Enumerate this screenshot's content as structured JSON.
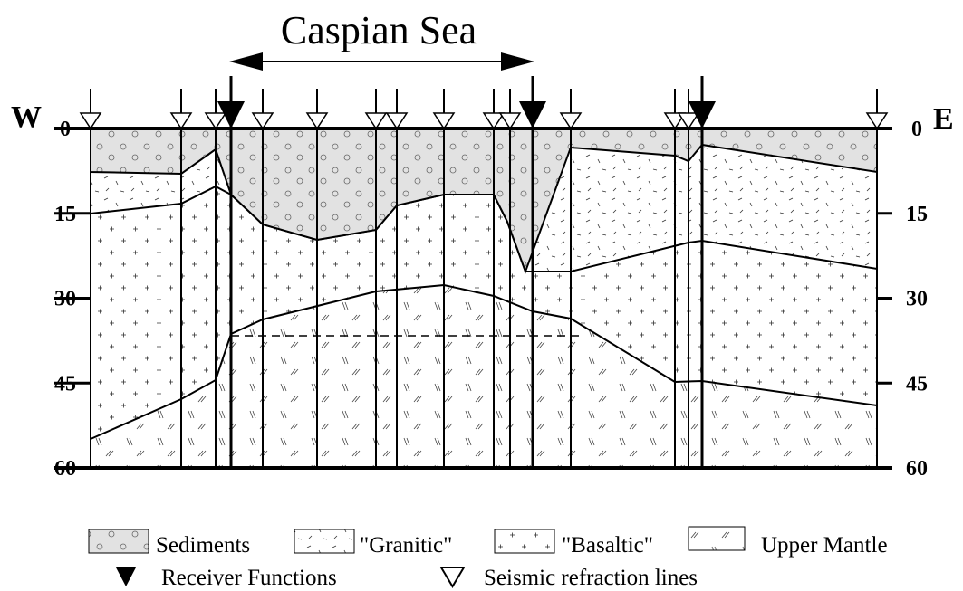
{
  "title": "Caspian Sea",
  "sides": {
    "west": "W",
    "east": "E"
  },
  "depth_ticks": [
    0,
    15,
    30,
    45,
    60
  ],
  "legend": {
    "sediments": "Sediments",
    "granitic": "\"Granitic\"",
    "basaltic": "\"Basaltic\"",
    "mantle": "Upper Mantle",
    "receiver": "Receiver Functions",
    "refraction": "Seismic refraction lines"
  }
}
